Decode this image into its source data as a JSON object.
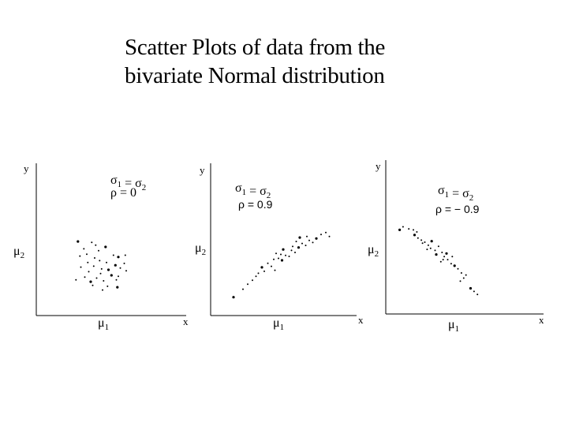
{
  "title": {
    "line1": "Scatter Plots of data from the",
    "line2": "bivariate Normal distribution"
  },
  "colors": {
    "points": "#000000",
    "axes": "#000000",
    "background": "#ffffff"
  },
  "chart_data": [
    {
      "type": "scatter",
      "xlabel": "x",
      "ylabel": "y",
      "x_mark": "μ1",
      "y_mark": "μ2",
      "annotation_sigma": "σ1 = σ2",
      "annotation_rho": "ρ = 0",
      "xlim": [
        0,
        10
      ],
      "ylim": [
        0,
        10
      ],
      "series": [
        {
          "points": [
            [
              2.3,
              6.2
            ],
            [
              3.7,
              6.1
            ],
            [
              4.1,
              5.8
            ],
            [
              2.9,
              5.4
            ],
            [
              4.4,
              5.2
            ],
            [
              5.1,
              5.6
            ],
            [
              2.5,
              4.6
            ],
            [
              3.2,
              4.8
            ],
            [
              4.0,
              4.4
            ],
            [
              5.9,
              4.7
            ],
            [
              6.4,
              4.5
            ],
            [
              7.1,
              4.7
            ],
            [
              3.3,
              3.9
            ],
            [
              4.5,
              4.1
            ],
            [
              5.2,
              3.9
            ],
            [
              6.1,
              3.6
            ],
            [
              7.0,
              3.8
            ],
            [
              2.6,
              3.4
            ],
            [
              3.9,
              3.5
            ],
            [
              4.7,
              3.2
            ],
            [
              5.4,
              3.1
            ],
            [
              6.6,
              3.3
            ],
            [
              7.2,
              3.0
            ],
            [
              3.4,
              2.9
            ],
            [
              4.6,
              2.7
            ],
            [
              5.7,
              2.5
            ],
            [
              6.4,
              2.4
            ],
            [
              3.0,
              2.3
            ],
            [
              4.2,
              2.2
            ],
            [
              2.1,
              2.0
            ],
            [
              3.6,
              1.8
            ],
            [
              4.9,
              1.9
            ],
            [
              6.2,
              2.0
            ],
            [
              3.8,
              1.4
            ],
            [
              5.3,
              1.3
            ],
            [
              6.3,
              1.2
            ],
            [
              4.8,
              0.9
            ]
          ]
        }
      ]
    },
    {
      "type": "scatter",
      "xlabel": "x",
      "ylabel": "y",
      "x_mark": "μ1",
      "y_mark": "μ2",
      "annotation_sigma": "σ1 = σ2",
      "annotation_rho": "ρ = 0.9",
      "xlim": [
        0,
        10
      ],
      "ylim": [
        0,
        10
      ],
      "series": [
        {
          "points": [
            [
              1.4,
              0.9
            ],
            [
              2.2,
              1.7
            ],
            [
              2.6,
              2.2
            ],
            [
              3.0,
              2.6
            ],
            [
              3.5,
              3.3
            ],
            [
              3.8,
              3.9
            ],
            [
              4.3,
              4.3
            ],
            [
              4.6,
              4.0
            ],
            [
              4.9,
              3.6
            ],
            [
              5.2,
              4.8
            ],
            [
              5.5,
              4.6
            ],
            [
              5.8,
              5.1
            ],
            [
              6.1,
              5.0
            ],
            [
              6.3,
              5.6
            ],
            [
              6.6,
              5.4
            ],
            [
              6.9,
              5.9
            ],
            [
              7.2,
              6.3
            ],
            [
              7.5,
              6.1
            ],
            [
              7.8,
              6.6
            ],
            [
              8.1,
              6.4
            ],
            [
              8.4,
              6.8
            ],
            [
              8.8,
              7.2
            ],
            [
              9.2,
              7.4
            ],
            [
              9.5,
              7.0
            ],
            [
              5.0,
              5.3
            ],
            [
              5.6,
              5.7
            ],
            [
              6.4,
              6.0
            ],
            [
              3.3,
              3.0
            ],
            [
              4.0,
              3.5
            ],
            [
              6.7,
              6.5
            ],
            [
              7.0,
              6.9
            ],
            [
              7.6,
              7.0
            ],
            [
              4.8,
              4.7
            ],
            [
              5.4,
              5.2
            ]
          ]
        }
      ]
    },
    {
      "type": "scatter",
      "xlabel": "x",
      "ylabel": "y",
      "x_mark": "μ1",
      "y_mark": "μ2",
      "annotation_sigma": "σ1 = σ2",
      "annotation_rho": "ρ = − 0.9",
      "xlim": [
        0,
        10
      ],
      "ylim": [
        0,
        10
      ],
      "series": [
        {
          "points": [
            [
              0.8,
              7.2
            ],
            [
              1.1,
              7.5
            ],
            [
              1.6,
              7.3
            ],
            [
              2.0,
              7.2
            ],
            [
              2.3,
              7.0
            ],
            [
              2.1,
              6.7
            ],
            [
              2.4,
              6.4
            ],
            [
              2.7,
              6.2
            ],
            [
              3.0,
              6.0
            ],
            [
              3.3,
              5.7
            ],
            [
              3.6,
              6.1
            ],
            [
              3.5,
              5.4
            ],
            [
              3.9,
              5.2
            ],
            [
              4.2,
              5.6
            ],
            [
              4.5,
              5.0
            ],
            [
              4.0,
              4.8
            ],
            [
              4.7,
              4.6
            ],
            [
              5.0,
              4.3
            ],
            [
              4.4,
              4.1
            ],
            [
              5.3,
              3.9
            ],
            [
              5.6,
              3.7
            ],
            [
              5.9,
              3.4
            ],
            [
              6.2,
              3.0
            ],
            [
              6.4,
              2.5
            ],
            [
              6.1,
              2.2
            ],
            [
              7.0,
              1.5
            ],
            [
              7.3,
              1.2
            ],
            [
              7.6,
              0.9
            ],
            [
              2.8,
              5.9
            ],
            [
              3.2,
              5.3
            ],
            [
              4.9,
              4.9
            ],
            [
              5.4,
              4.6
            ],
            [
              4.6,
              4.3
            ],
            [
              6.6,
              2.8
            ]
          ]
        }
      ]
    }
  ]
}
